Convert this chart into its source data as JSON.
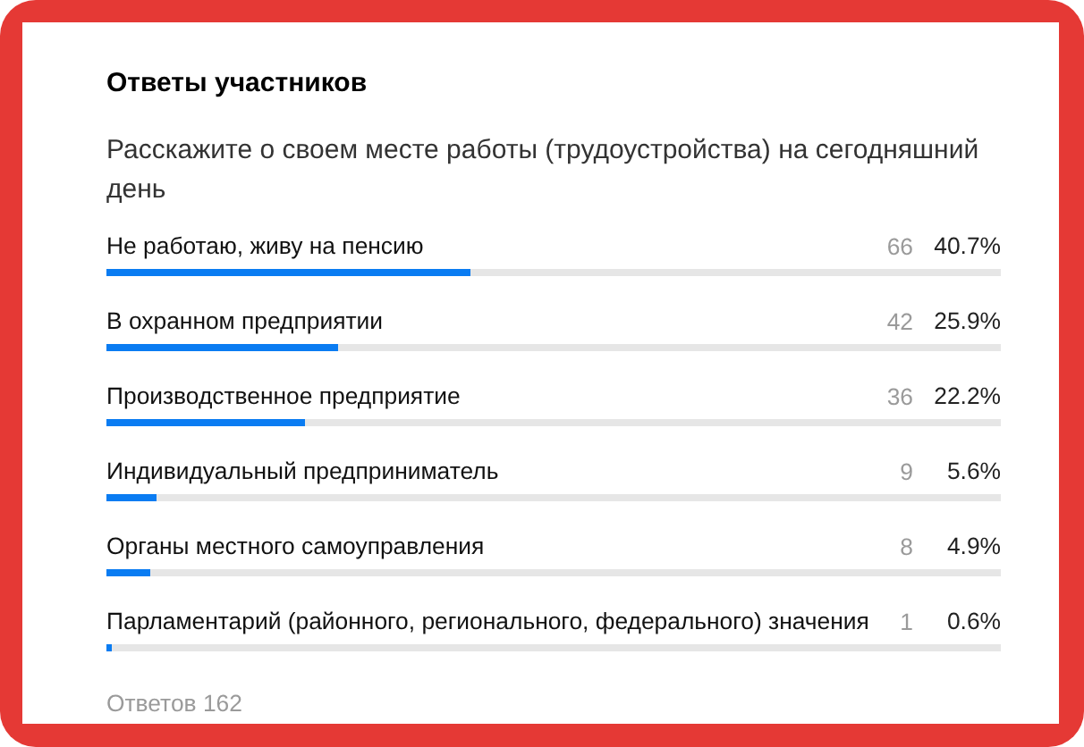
{
  "chart_data": {
    "type": "bar",
    "orientation": "horizontal",
    "title": "Ответы участников",
    "subtitle": "Расскажите о своем месте работы (трудоустройства) на сегодняшний день",
    "categories": [
      "Не работаю, живу на пенсию",
      "В охранном предприятии",
      "Производственное предприятие",
      "Индивидуальный предприниматель",
      "Органы местного самоуправления",
      "Парламентарий (районного, регионального, федерального) значения"
    ],
    "values": [
      40.7,
      25.9,
      22.2,
      5.6,
      4.9,
      0.6
    ],
    "color": "#0a7cf2",
    "xlim": [
      0,
      100
    ],
    "tick_labels": false,
    "value_labels": [
      "40.7%",
      "25.9%",
      "22.2%",
      "5.6%",
      "4.9%",
      "0.6%"
    ],
    "annotations": [
      "66",
      "42",
      "36",
      "9",
      "8",
      "1",
      "Ответов 162"
    ]
  }
}
